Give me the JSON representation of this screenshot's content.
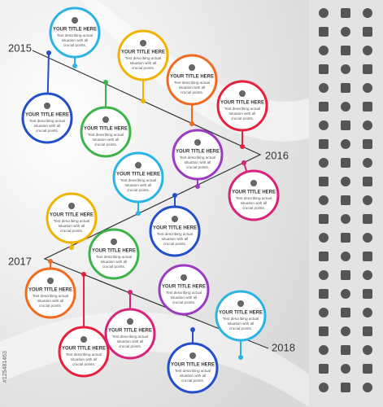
{
  "years": [
    "2015",
    "2016",
    "2017",
    "2018"
  ],
  "nodes": [
    {
      "title": "YOUR TITLE HERE",
      "text": [
        "Text describing actual",
        "situation with all",
        "crucial points."
      ]
    },
    {
      "title": "YOUR TITLE HERE",
      "text": [
        "Text describing actual",
        "situation with all",
        "crucial points."
      ]
    },
    {
      "title": "YOUR TITLE HERE",
      "text": [
        "Text describing actual",
        "situation with all",
        "crucial points."
      ]
    },
    {
      "title": "YOUR TITLE HERE",
      "text": [
        "Text describing actual",
        "situation with all",
        "crucial points."
      ]
    },
    {
      "title": "YOUR TITLE HERE",
      "text": [
        "Text describing actual",
        "situation with all",
        "crucial points."
      ]
    },
    {
      "title": "YOUR TITLE HERE",
      "text": [
        "Text describing actual",
        "situation with all",
        "crucial points."
      ]
    },
    {
      "title": "YOUR TITLE HERE",
      "text": [
        "Text describing actual",
        "situation with all",
        "crucial points."
      ]
    },
    {
      "title": "YOUR TITLE HERE",
      "text": [
        "Text describing actual",
        "situation with all",
        "crucial points."
      ]
    },
    {
      "title": "YOUR TITLE HERE",
      "text": [
        "Text describing actual",
        "situation with all",
        "crucial points."
      ]
    },
    {
      "title": "YOUR TITLE HERE",
      "text": [
        "Text describing actual",
        "situation with all",
        "crucial points."
      ]
    },
    {
      "title": "YOUR TITLE HERE",
      "text": [
        "Text describing actual",
        "situation with all",
        "crucial points."
      ]
    },
    {
      "title": "YOUR TITLE HERE",
      "text": [
        "Text describing actual",
        "situation with all",
        "crucial points."
      ]
    },
    {
      "title": "YOUR TITLE HERE",
      "text": [
        "Text describing actual",
        "situation with all",
        "crucial points."
      ]
    },
    {
      "title": "YOUR TITLE HERE",
      "text": [
        "Text describing actual",
        "situation with all",
        "crucial points."
      ]
    },
    {
      "title": "YOUR TITLE HERE",
      "text": [
        "Text describing actual",
        "situation with all",
        "crucial points."
      ]
    },
    {
      "title": "YOUR TITLE HERE",
      "text": [
        "Text describing actual",
        "situation with all",
        "crucial points."
      ]
    },
    {
      "title": "YOUR TITLE HERE",
      "text": [
        "Text describing actual",
        "situation with all",
        "crucial points."
      ]
    },
    {
      "title": "YOUR TITLE HERE",
      "text": [
        "Text describing actual",
        "situation with all",
        "crucial points."
      ]
    }
  ],
  "watermark": "#125481463"
}
